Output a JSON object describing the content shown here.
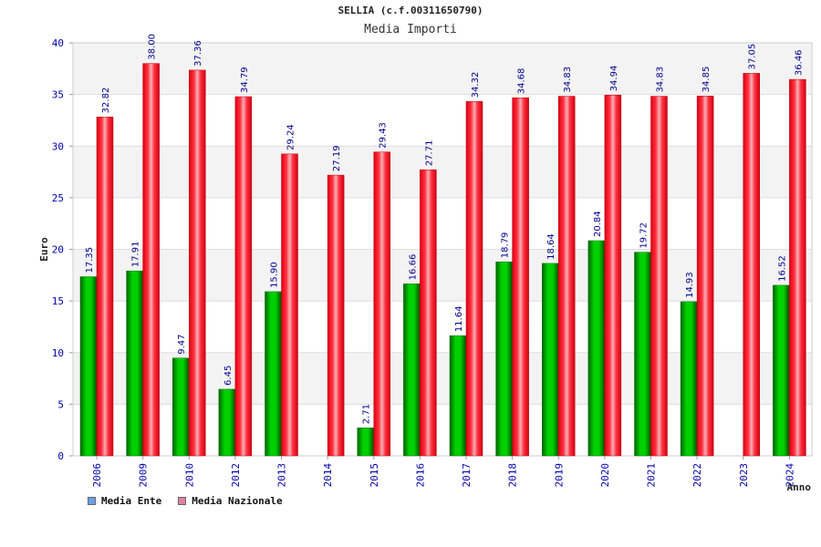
{
  "chart_data": {
    "type": "bar",
    "title": "SELLIA (c.f.00311650790)",
    "subtitle": "Media Importi",
    "ylabel": "Euro",
    "xlabel": "Anno",
    "ylim": [
      0,
      40
    ],
    "yticks": [
      0,
      5,
      10,
      15,
      20,
      25,
      30,
      35,
      40
    ],
    "categories": [
      "2006",
      "2009",
      "2010",
      "2012",
      "2013",
      "2014",
      "2015",
      "2016",
      "2017",
      "2018",
      "2019",
      "2020",
      "2021",
      "2022",
      "2023",
      "2024"
    ],
    "series": [
      {
        "name": "Media Ente",
        "color": "#00c000",
        "legend_color": "#6aa0e8",
        "values": [
          17.35,
          17.91,
          9.47,
          6.45,
          15.9,
          null,
          2.71,
          16.66,
          11.64,
          18.79,
          18.64,
          20.84,
          19.72,
          14.93,
          null,
          16.52
        ],
        "labels": [
          "17.35",
          "17.91",
          "9.47",
          "6.45",
          "15.90",
          "",
          "2.71",
          "16.66",
          "11.64",
          "18.79",
          "18.64",
          "20.84",
          "19.72",
          "14.93",
          "",
          "16.52"
        ]
      },
      {
        "name": "Media Nazionale",
        "color": "#f01020",
        "legend_color": "#e080a0",
        "values": [
          32.82,
          38.0,
          37.36,
          34.79,
          29.24,
          27.19,
          29.43,
          27.71,
          34.32,
          34.68,
          34.83,
          34.94,
          34.83,
          34.85,
          37.05,
          36.46
        ],
        "labels": [
          "32.82",
          "38.00",
          "37.36",
          "34.79",
          "29.24",
          "27.19",
          "29.43",
          "27.71",
          "34.32",
          "34.68",
          "34.83",
          "34.94",
          "34.83",
          "34.85",
          "37.05",
          "36.46"
        ]
      }
    ],
    "legend_position": "bottom-left",
    "grid": true
  }
}
